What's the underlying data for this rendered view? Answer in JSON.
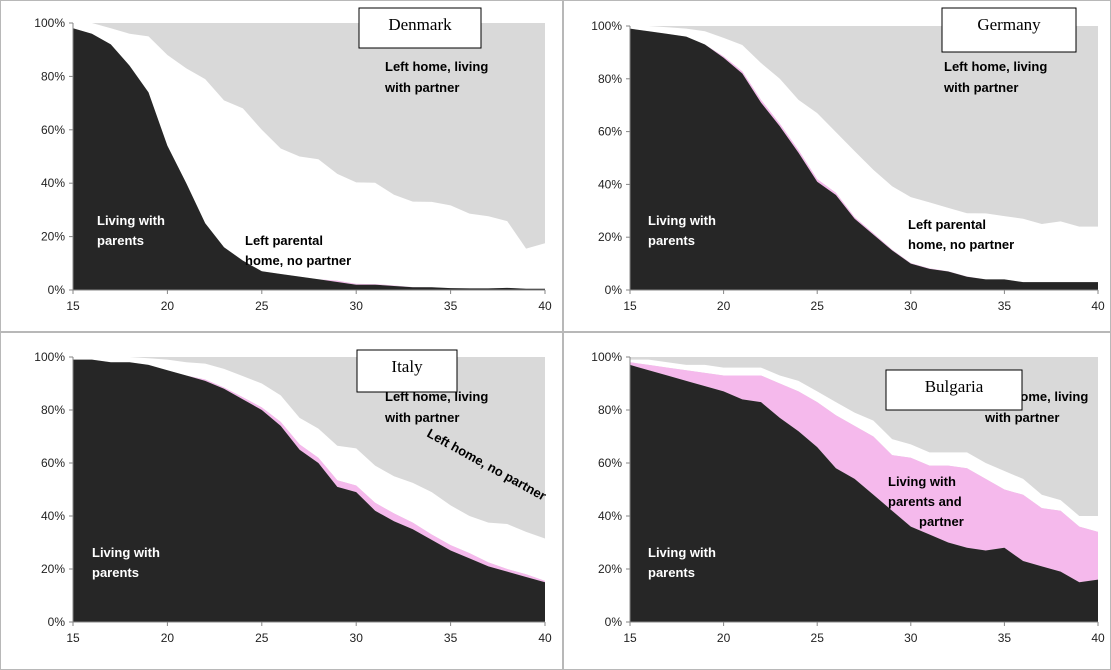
{
  "colors": {
    "parents": "#262626",
    "parents_partner": "#f5b9ec",
    "alone": "#ffffff",
    "partner": "#d9d9d9",
    "frame": "#b8b8b8",
    "axis": "#868686"
  },
  "chart_data": [
    {
      "type": "area",
      "title": "Denmark",
      "x": [
        15,
        16,
        17,
        18,
        19,
        20,
        21,
        22,
        23,
        24,
        25,
        26,
        27,
        28,
        29,
        30,
        31,
        32,
        33,
        34,
        35,
        36,
        37,
        38,
        39,
        40
      ],
      "ylim": [
        0,
        100
      ],
      "xticks": [
        "15",
        "20",
        "25",
        "30",
        "35",
        "40"
      ],
      "yticks": [
        "0%",
        "20%",
        "40%",
        "60%",
        "80%",
        "100%"
      ],
      "series": [
        {
          "name": "Living with parents",
          "values": [
            98,
            96,
            92,
            84,
            74,
            54,
            40,
            25,
            16,
            11,
            7,
            6,
            5,
            4,
            3,
            2,
            2,
            1.5,
            1,
            1,
            0.7,
            0.6,
            0.6,
            0.8,
            0.5,
            0.5
          ]
        },
        {
          "name": "Living with parents and partner",
          "values": [
            0,
            0,
            0,
            0,
            0,
            0,
            0,
            0,
            0,
            0,
            0,
            0,
            0,
            0,
            0.5,
            0.3,
            0.2,
            0.2,
            0.1,
            0,
            0,
            0,
            0,
            0,
            0,
            0
          ]
        },
        {
          "name": "Left parental home, no partner",
          "values": [
            2,
            4,
            6,
            12,
            21,
            34,
            43,
            54,
            55,
            57,
            53,
            47,
            45,
            45,
            40,
            38,
            38,
            34,
            32,
            32,
            31,
            28,
            27,
            25,
            15,
            17
          ]
        }
      ],
      "labels": {
        "parents": [
          "Living with",
          "parents"
        ],
        "alone": [
          "Left parental",
          "home, no partner"
        ],
        "partner": [
          "Left home, living",
          "with partner"
        ]
      }
    },
    {
      "type": "area",
      "title": "Germany",
      "x": [
        15,
        16,
        17,
        18,
        19,
        20,
        21,
        22,
        23,
        24,
        25,
        26,
        27,
        28,
        29,
        30,
        31,
        32,
        33,
        34,
        35,
        36,
        37,
        38,
        39,
        40
      ],
      "ylim": [
        0,
        100
      ],
      "xticks": [
        "15",
        "20",
        "25",
        "30",
        "35",
        "40"
      ],
      "yticks": [
        "0%",
        "20%",
        "40%",
        "60%",
        "80%",
        "100%"
      ],
      "series": [
        {
          "name": "Living with parents",
          "values": [
            99,
            98,
            97,
            96,
            93,
            88,
            82,
            71,
            62,
            52,
            41,
            36,
            27,
            21,
            15,
            10,
            8,
            7,
            5,
            4,
            4,
            3,
            3,
            3,
            3,
            3
          ]
        },
        {
          "name": "Living with parents and partner",
          "values": [
            0,
            0,
            0,
            0,
            0,
            0.5,
            0.8,
            1,
            1,
            1,
            1,
            0.8,
            0.6,
            0.5,
            0.3,
            0.2,
            0.2,
            0.1,
            0.1,
            0,
            0,
            0,
            0,
            0,
            0,
            0
          ]
        },
        {
          "name": "Left parental home, no partner",
          "values": [
            1,
            2,
            2.5,
            3,
            5,
            7,
            10,
            14,
            17,
            19,
            25,
            23,
            25,
            24,
            24,
            25,
            25,
            24,
            24,
            25,
            24,
            24,
            22,
            23,
            21,
            21
          ]
        }
      ],
      "labels": {
        "parents": [
          "Living with",
          "parents"
        ],
        "alone": [
          "Left parental",
          "home, no partner"
        ],
        "partner": [
          "Left home, living",
          "with partner"
        ]
      }
    },
    {
      "type": "area",
      "title": "Italy",
      "x": [
        15,
        16,
        17,
        18,
        19,
        20,
        21,
        22,
        23,
        24,
        25,
        26,
        27,
        28,
        29,
        30,
        31,
        32,
        33,
        34,
        35,
        36,
        37,
        38,
        39,
        40
      ],
      "ylim": [
        0,
        100
      ],
      "xticks": [
        "15",
        "20",
        "25",
        "30",
        "35",
        "40"
      ],
      "yticks": [
        "0%",
        "20%",
        "40%",
        "60%",
        "80%",
        "100%"
      ],
      "series": [
        {
          "name": "Living with parents",
          "values": [
            99,
            99,
            98,
            98,
            97,
            95,
            93,
            91,
            88,
            84,
            80,
            74,
            65,
            60,
            51,
            49,
            42,
            38,
            35,
            31,
            27,
            24,
            21,
            19,
            17,
            15
          ]
        },
        {
          "name": "Living with parents and partner",
          "values": [
            0,
            0,
            0,
            0,
            0,
            0,
            0,
            0.5,
            0.5,
            0.8,
            1,
            1.5,
            2,
            2,
            2.5,
            2.5,
            3,
            3,
            2.5,
            2,
            2,
            2,
            1.5,
            1,
            1,
            0.5
          ]
        },
        {
          "name": "Left parental home, no partner",
          "values": [
            1,
            1,
            2,
            2,
            2.5,
            4,
            5,
            6,
            7,
            8,
            9,
            10,
            10,
            11,
            13,
            14,
            14,
            14,
            15,
            16,
            15,
            14,
            15,
            17,
            16,
            16
          ]
        }
      ],
      "labels": {
        "parents": [
          "Living with",
          "parents"
        ],
        "alone": [
          "Left home, no partner"
        ],
        "partner": [
          "Left home, living",
          "with partner"
        ]
      }
    },
    {
      "type": "area",
      "title": "Bulgaria",
      "x": [
        15,
        16,
        17,
        18,
        19,
        20,
        21,
        22,
        23,
        24,
        25,
        26,
        27,
        28,
        29,
        30,
        31,
        32,
        33,
        34,
        35,
        36,
        37,
        38,
        39,
        40
      ],
      "ylim": [
        0,
        100
      ],
      "xticks": [
        "15",
        "20",
        "25",
        "30",
        "35",
        "40"
      ],
      "yticks": [
        "0%",
        "20%",
        "40%",
        "60%",
        "80%",
        "100%"
      ],
      "series": [
        {
          "name": "Living with parents",
          "values": [
            97,
            95,
            93,
            91,
            89,
            87,
            84,
            83,
            77,
            72,
            66,
            58,
            54,
            48,
            42,
            36,
            33,
            30,
            28,
            27,
            28,
            23,
            21,
            19,
            15,
            16
          ]
        },
        {
          "name": "Living with parents and partner",
          "values": [
            1,
            2,
            3,
            4,
            5,
            6,
            9,
            10,
            13,
            15,
            17,
            20,
            20,
            22,
            21,
            26,
            26,
            29,
            30,
            27,
            22,
            25,
            22,
            23,
            21,
            18
          ]
        },
        {
          "name": "Left parental home, no partner",
          "values": [
            1,
            2,
            2,
            2,
            3,
            3,
            3,
            3,
            3,
            4,
            4,
            5,
            5,
            6,
            6,
            5,
            5,
            5,
            6,
            6,
            7,
            6,
            5,
            4,
            4,
            6
          ]
        }
      ],
      "labels": {
        "parents_partner": [
          "Living with",
          "parents and",
          "partner"
        ],
        "parents": [
          "Living with",
          "parents"
        ],
        "partner": [
          "Left home, living",
          "with partner"
        ]
      }
    }
  ]
}
